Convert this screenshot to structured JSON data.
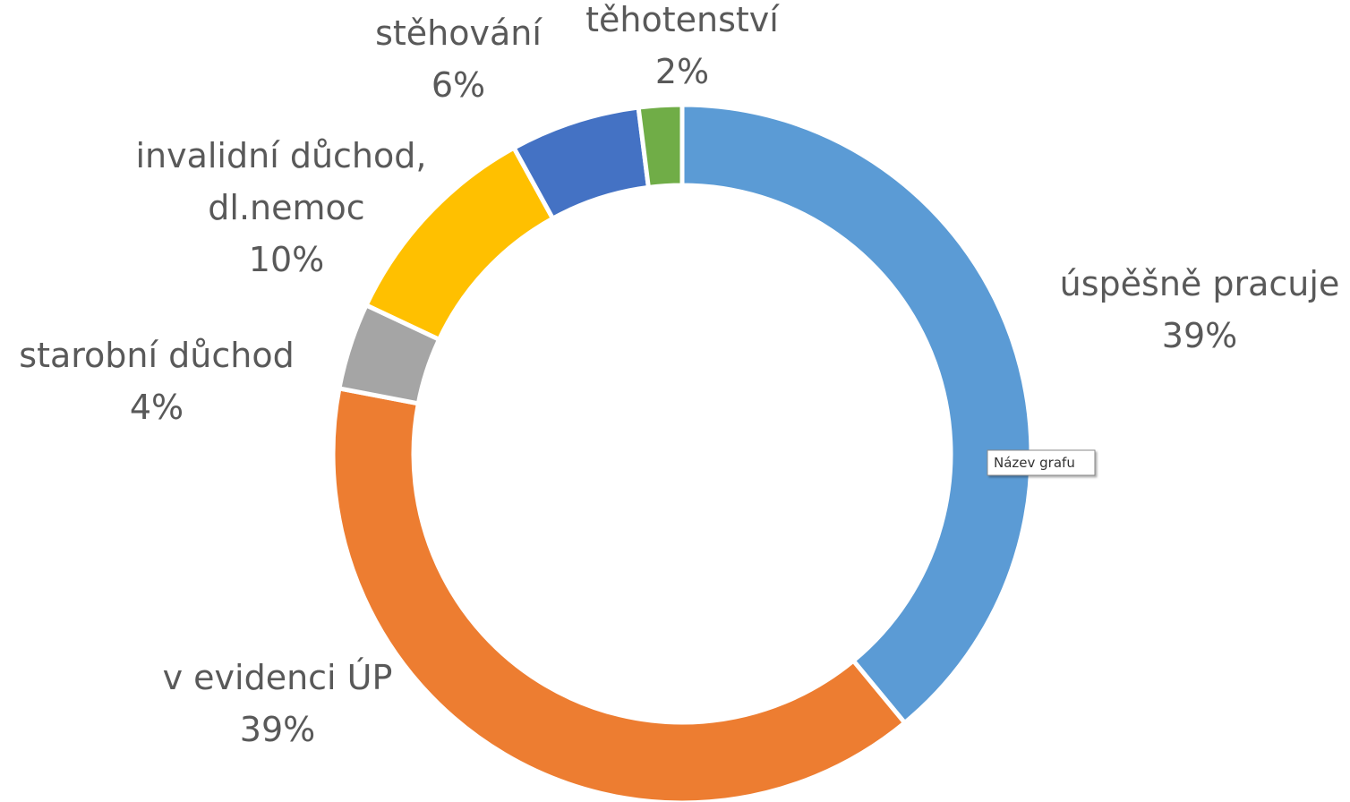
{
  "chart_data": {
    "type": "donut",
    "categories": [
      "úspěšně pracuje",
      "v evidenci ÚP",
      "starobní důchod",
      "invalidní důchod, dl.nemoc",
      "stěhování",
      "těhotenství"
    ],
    "values": [
      39,
      39,
      4,
      10,
      6,
      2
    ],
    "value_labels": [
      "39%",
      "39%",
      "4%",
      "10%",
      "6%",
      "2%"
    ],
    "colors": [
      "#5b9bd5",
      "#ed7d31",
      "#a5a5a5",
      "#ffc000",
      "#4472c4",
      "#70ad47"
    ],
    "tooltip": "Název grafu"
  }
}
